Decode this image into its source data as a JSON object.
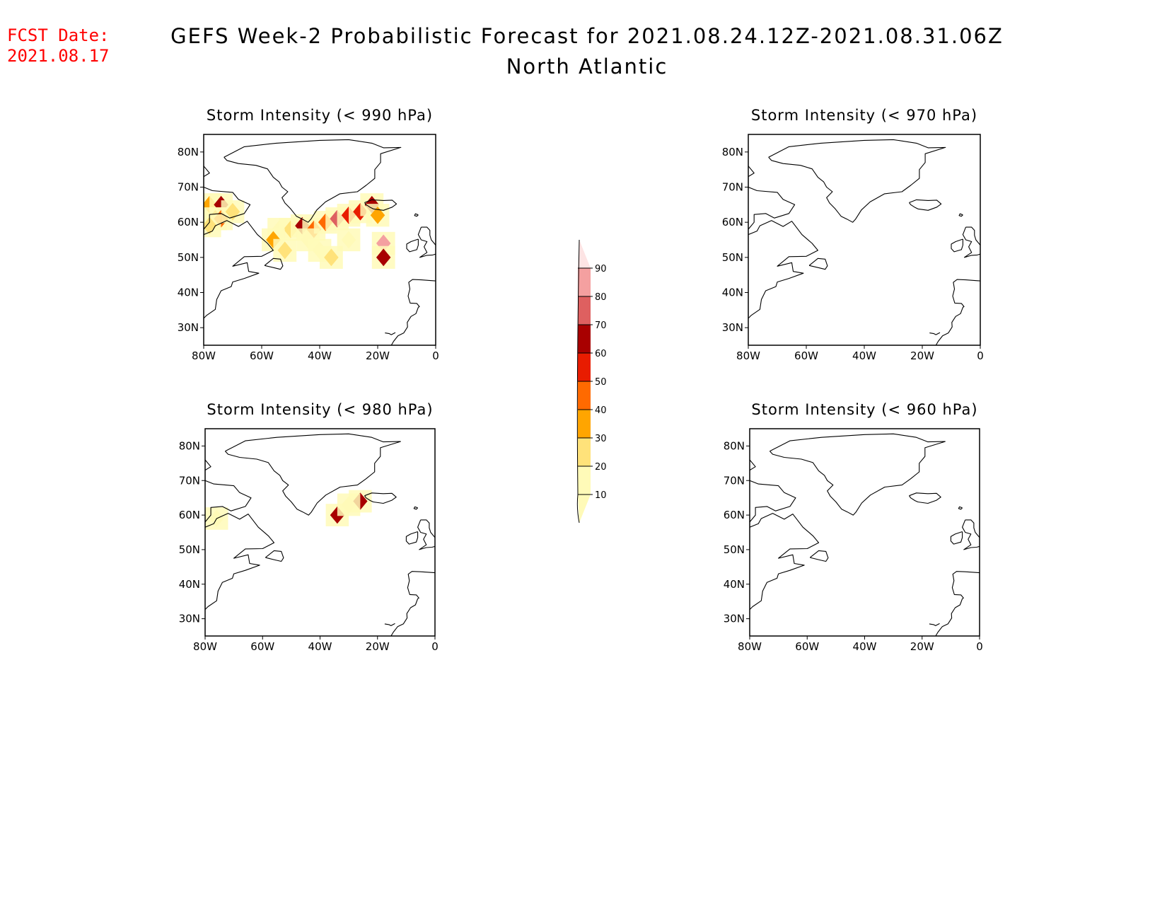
{
  "fcst_label": "FCST Date:",
  "fcst_date": "2021.08.17",
  "title": "GEFS Week-2 Probabilistic Forecast for 2021.08.24.12Z-2021.08.31.06Z",
  "subtitle": "North Atlantic",
  "colorbar": {
    "levels": [
      "10",
      "20",
      "30",
      "40",
      "50",
      "60",
      "70",
      "80",
      "90"
    ],
    "colors": [
      "#fffab8",
      "#ffe27a",
      "#ffa500",
      "#ff6a00",
      "#e81c00",
      "#a80000",
      "#de6060",
      "#f4a0a0",
      "#fde4e4"
    ]
  },
  "panels": [
    {
      "id": "p990",
      "title": "Storm Intensity (< 990 hPa)",
      "lon_ticks": [
        "80W",
        "60W",
        "40W",
        "20W",
        "0"
      ],
      "lat_ticks": [
        "80N",
        "70N",
        "60N",
        "50N",
        "40N",
        "30N"
      ],
      "cells": [
        {
          "lon": -78,
          "lat": 65,
          "p": 30
        },
        {
          "lon": -74,
          "lat": 65,
          "p": 60
        },
        {
          "lon": -76,
          "lat": 61,
          "p": 30
        },
        {
          "lon": -74,
          "lat": 61,
          "p": 40
        },
        {
          "lon": -78,
          "lat": 59,
          "p": 20
        },
        {
          "lon": -70,
          "lat": 63,
          "p": 20
        },
        {
          "lon": -54,
          "lat": 58,
          "p": 10
        },
        {
          "lon": -50,
          "lat": 58,
          "p": 20
        },
        {
          "lon": -46,
          "lat": 59,
          "p": 60
        },
        {
          "lon": -42,
          "lat": 58,
          "p": 40
        },
        {
          "lon": -38,
          "lat": 60,
          "p": 40
        },
        {
          "lon": -34,
          "lat": 61,
          "p": 70
        },
        {
          "lon": -30,
          "lat": 62,
          "p": 50
        },
        {
          "lon": -26,
          "lat": 63,
          "p": 50
        },
        {
          "lon": -22,
          "lat": 65,
          "p": 60
        },
        {
          "lon": -20,
          "lat": 62,
          "p": 30
        },
        {
          "lon": -56,
          "lat": 55,
          "p": 30
        },
        {
          "lon": -52,
          "lat": 52,
          "p": 20
        },
        {
          "lon": -44,
          "lat": 55,
          "p": 10
        },
        {
          "lon": -40,
          "lat": 52,
          "p": 10
        },
        {
          "lon": -36,
          "lat": 50,
          "p": 20
        },
        {
          "lon": -30,
          "lat": 55,
          "p": 10
        },
        {
          "lon": -18,
          "lat": 54,
          "p": 80
        },
        {
          "lon": -18,
          "lat": 50,
          "p": 60
        }
      ]
    },
    {
      "id": "p970",
      "title": "Storm Intensity (< 970 hPa)",
      "lon_ticks": [
        "80W",
        "60W",
        "40W",
        "20W",
        "0"
      ],
      "lat_ticks": [
        "80N",
        "70N",
        "60N",
        "50N",
        "40N",
        "30N"
      ],
      "cells": []
    },
    {
      "id": "p980",
      "title": "Storm Intensity (< 980 hPa)",
      "lon_ticks": [
        "80W",
        "60W",
        "40W",
        "20W",
        "0"
      ],
      "lat_ticks": [
        "80N",
        "70N",
        "60N",
        "50N",
        "40N",
        "30N"
      ],
      "cells": [
        {
          "lon": -76,
          "lat": 59,
          "p": 10
        },
        {
          "lon": -34,
          "lat": 60,
          "p": 60
        },
        {
          "lon": -26,
          "lat": 64,
          "p": 60
        },
        {
          "lon": -30,
          "lat": 63,
          "p": 10
        }
      ]
    },
    {
      "id": "p960",
      "title": "Storm Intensity (< 960 hPa)",
      "lon_ticks": [
        "80W",
        "60W",
        "40W",
        "20W",
        "0"
      ],
      "lat_ticks": [
        "80N",
        "70N",
        "60N",
        "50N",
        "40N",
        "30N"
      ],
      "cells": []
    }
  ]
}
